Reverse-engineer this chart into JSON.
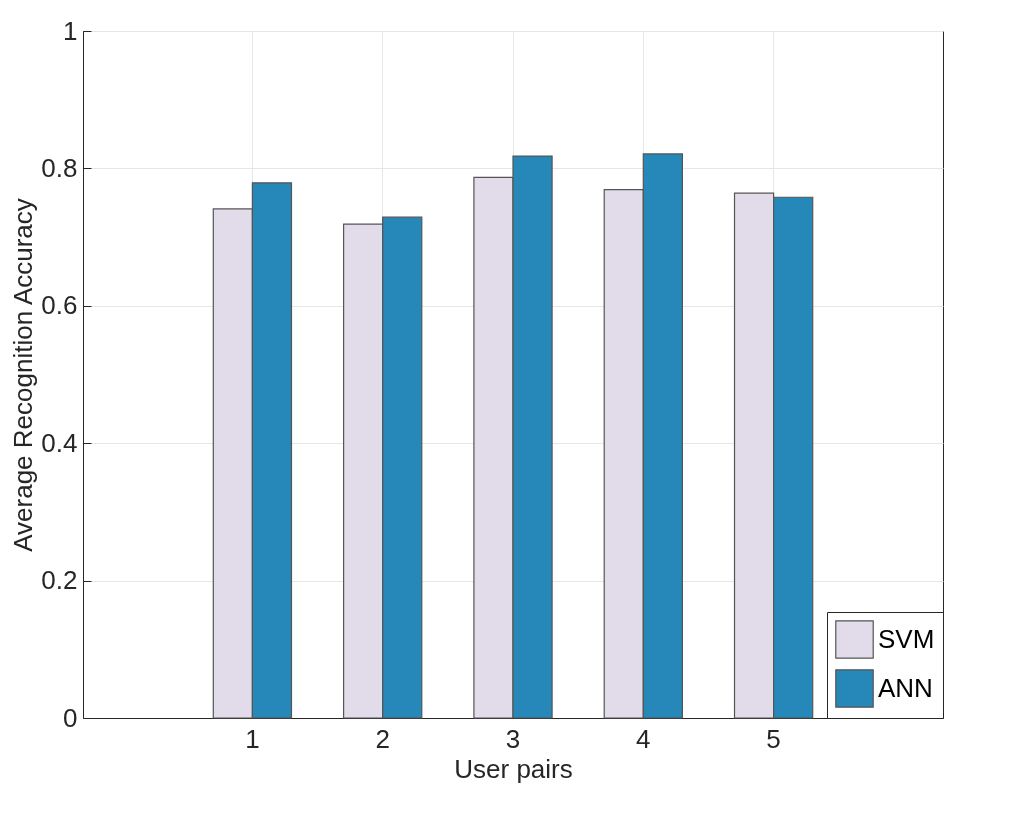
{
  "chart_data": {
    "type": "bar",
    "xlabel": "User pairs",
    "ylabel": "Average Recognition Accuracy",
    "categories": [
      "1",
      "2",
      "3",
      "4",
      "5"
    ],
    "series": [
      {
        "name": "SVM",
        "color": "#e2dcea",
        "values": [
          0.741,
          0.719,
          0.787,
          0.769,
          0.764
        ]
      },
      {
        "name": "ANN",
        "color": "#2688b9",
        "values": [
          0.779,
          0.729,
          0.818,
          0.821,
          0.758
        ]
      }
    ],
    "ylim": [
      0,
      1
    ],
    "yticks": [
      0,
      0.2,
      0.4,
      0.6,
      0.8,
      1
    ],
    "grid": true,
    "legend": "bottom right"
  }
}
